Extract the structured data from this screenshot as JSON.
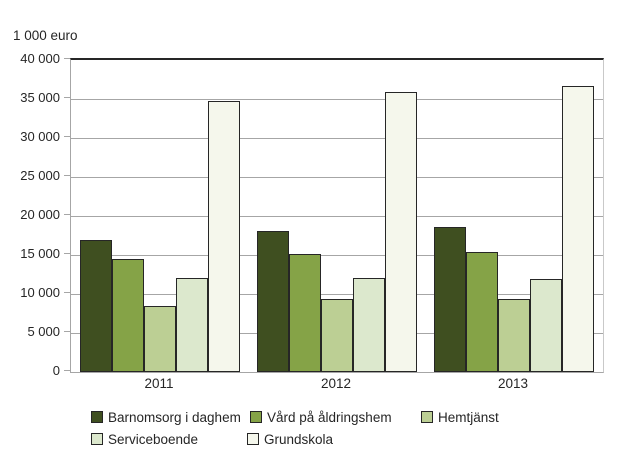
{
  "chart_data": {
    "type": "bar",
    "title": "",
    "ylabel": "1 000 euro",
    "xlabel": "",
    "categories": [
      "2011",
      "2012",
      "2013"
    ],
    "series": [
      {
        "name": "Barnomsorg i daghem",
        "color": "#3F4F20",
        "values": [
          16900,
          18100,
          18600
        ]
      },
      {
        "name": "Vård på åldringshem",
        "color": "#85A347",
        "values": [
          14500,
          15100,
          15400
        ]
      },
      {
        "name": "Hemtjänst",
        "color": "#BCCF94",
        "values": [
          8500,
          9400,
          9400
        ]
      },
      {
        "name": "Serviceboende",
        "color": "#DCE8CD",
        "values": [
          12000,
          12100,
          11900
        ]
      },
      {
        "name": "Grundskola",
        "color": "#F5F7EC",
        "values": [
          34800,
          35900,
          36700
        ]
      }
    ],
    "ylim": [
      0,
      40000
    ],
    "ytick_step": 5000,
    "ytick_labels": [
      "0",
      "5 000",
      "10 000",
      "15 000",
      "20 000",
      "25 000",
      "30 000",
      "35 000",
      "40 000"
    ],
    "grid": true,
    "legend_position": "bottom",
    "colors": {
      "gridline": "#A6A6A6",
      "plot_top_border": "#262626",
      "bar_border": "#262626",
      "text": "#262626"
    }
  }
}
